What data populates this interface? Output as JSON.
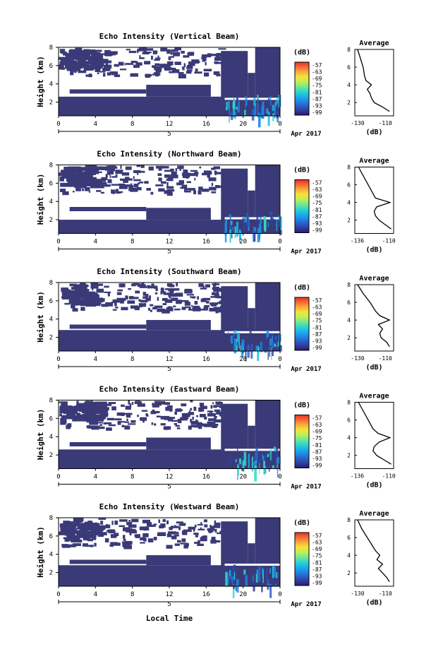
{
  "colorbar": {
    "unit": "(dB)",
    "ticks": [
      "-57",
      "-63",
      "-69",
      "-75",
      "-81",
      "-87",
      "-93",
      "-99"
    ],
    "colors": [
      "#2a1a78",
      "#2f3f9e",
      "#2c62c8",
      "#1d8de8",
      "#19b8e8",
      "#34d9c4",
      "#7de88a",
      "#c4ef52",
      "#f4e23a",
      "#f9a93a",
      "#f56a32",
      "#e2312c"
    ]
  },
  "shared": {
    "x_ticks": [
      "0",
      "4",
      "8",
      "12",
      "16",
      "20",
      "0"
    ],
    "date_day": "5",
    "date_label": "Apr 2017",
    "y_label": "Height (km)",
    "y_ticks": [
      "8",
      "6",
      "4",
      "2"
    ],
    "avg_title": "Average",
    "avg_unit": "(dB)",
    "avg_y_ticks": [
      "8",
      "6",
      "4",
      "2"
    ],
    "x_title": "Local Time"
  },
  "colors": {
    "plume": "#3a3a78",
    "white": "#ffffff",
    "line": "#000000"
  },
  "chart_data": [
    {
      "type": "heatmap",
      "title": "Echo Intensity (Vertical Beam)",
      "xlim": [
        0,
        24
      ],
      "ylim": [
        0.5,
        8
      ],
      "avg_xticks": [
        "-130",
        "-110"
      ],
      "avg_xlim": [
        -132,
        -104
      ],
      "avg_profile": {
        "y": [
          1,
          1.5,
          2,
          2.5,
          3,
          3.5,
          4,
          4.5,
          5,
          6,
          7,
          8
        ],
        "x": [
          -107,
          -112,
          -118,
          -120,
          -121,
          -123,
          -120,
          -124,
          -125,
          -126,
          -128,
          -130
        ]
      }
    },
    {
      "type": "heatmap",
      "title": "Echo Intensity (Northward Beam)",
      "xlim": [
        0,
        24
      ],
      "ylim": [
        0.5,
        8
      ],
      "avg_xticks": [
        "-136",
        "-110"
      ],
      "avg_xlim": [
        -138,
        -106
      ],
      "avg_profile": {
        "y": [
          1,
          1.5,
          2,
          2.5,
          3,
          3.5,
          4,
          4.5,
          5,
          6,
          7,
          8
        ],
        "x": [
          -108,
          -113,
          -118,
          -121,
          -122,
          -120,
          -109,
          -121,
          -123,
          -127,
          -131,
          -135
        ]
      }
    },
    {
      "type": "heatmap",
      "title": "Echo Intensity (Southward Beam)",
      "xlim": [
        0,
        24
      ],
      "ylim": [
        0.5,
        8
      ],
      "avg_xticks": [
        "-130",
        "-110"
      ],
      "avg_xlim": [
        -132,
        -104
      ],
      "avg_profile": {
        "y": [
          1,
          1.5,
          2,
          2.5,
          3,
          3.5,
          4,
          4.5,
          5,
          6,
          7,
          8
        ],
        "x": [
          -107,
          -109,
          -113,
          -114,
          -112,
          -115,
          -107,
          -114,
          -117,
          -121,
          -126,
          -130
        ]
      }
    },
    {
      "type": "heatmap",
      "title": "Echo Intensity (Eastward Beam)",
      "xlim": [
        0,
        24
      ],
      "ylim": [
        0.5,
        8
      ],
      "avg_xticks": [
        "-136",
        "-110"
      ],
      "avg_xlim": [
        -138,
        -106
      ],
      "avg_profile": {
        "y": [
          1,
          1.5,
          2,
          2.5,
          3,
          3.5,
          4,
          4.5,
          5,
          6,
          7,
          8
        ],
        "x": [
          -108,
          -114,
          -120,
          -123,
          -122,
          -118,
          -109,
          -119,
          -123,
          -127,
          -131,
          -135
        ]
      }
    },
    {
      "type": "heatmap",
      "title": "Echo Intensity (Westward Beam)",
      "xlim": [
        0,
        24
      ],
      "ylim": [
        0.5,
        8
      ],
      "avg_xticks": [
        "-130",
        "-110"
      ],
      "avg_xlim": [
        -132,
        -104
      ],
      "avg_profile": {
        "y": [
          1,
          1.5,
          2,
          2.5,
          3,
          3.5,
          4,
          4.5,
          5,
          6,
          7,
          8
        ],
        "x": [
          -107,
          -109,
          -112,
          -115,
          -112,
          -116,
          -114,
          -117,
          -119,
          -123,
          -127,
          -130
        ]
      }
    }
  ]
}
